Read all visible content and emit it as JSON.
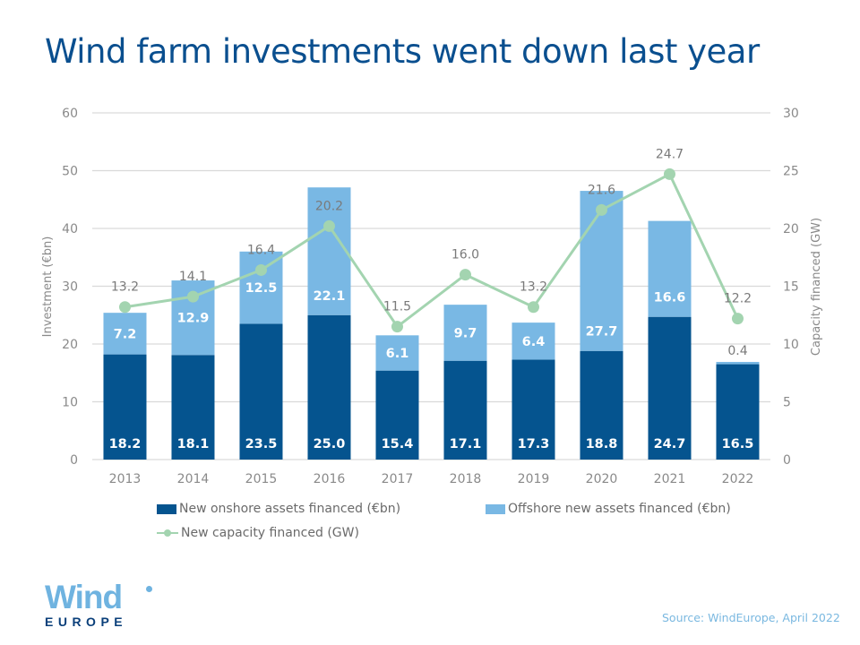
{
  "title": "Wind farm investments went down last year",
  "chart_data": {
    "type": "bar",
    "stacked": true,
    "title": "Wind farm investments went down last year",
    "categories": [
      "2013",
      "2014",
      "2015",
      "2016",
      "2017",
      "2018",
      "2019",
      "2020",
      "2021",
      "2022"
    ],
    "series": [
      {
        "name": "New onshore assets financed (€bn)",
        "type": "bar",
        "axis": "left",
        "color": "#05548f",
        "values": [
          18.2,
          18.1,
          23.5,
          25.0,
          15.4,
          17.1,
          17.3,
          18.8,
          24.7,
          16.5
        ],
        "labels": [
          "18.2",
          "18.1",
          "23.5",
          "25.0",
          "15.4",
          "17.1",
          "17.3",
          "18.8",
          "24.7",
          "16.5"
        ]
      },
      {
        "name": "Offshore new assets financed (€bn)",
        "type": "bar",
        "axis": "left",
        "color": "#79b8e4",
        "values": [
          7.2,
          12.9,
          12.5,
          22.1,
          6.1,
          9.7,
          6.4,
          27.7,
          16.6,
          0.4
        ],
        "labels": [
          "7.2",
          "12.9",
          "12.5",
          "22.1",
          "6.1",
          "9.7",
          "6.4",
          "27.7",
          "16.6",
          "0.4"
        ]
      },
      {
        "name": "New capacity financed (GW)",
        "type": "line",
        "axis": "right",
        "color": "#a3d4b0",
        "values": [
          13.2,
          14.1,
          16.4,
          20.2,
          11.5,
          16.0,
          13.2,
          21.6,
          24.7,
          12.2
        ],
        "labels": [
          "13.2",
          "14.1",
          "16.4",
          "20.2",
          "11.5",
          "16.0",
          "13.2",
          "21.6",
          "24.7",
          "12.2"
        ]
      }
    ],
    "ylabel": "Investment (€bn)",
    "ylim": [
      0,
      60
    ],
    "yticks": [
      "0",
      "10",
      "20",
      "30",
      "40",
      "50",
      "60"
    ],
    "y2label": "Capacity financed (GW)",
    "y2lim": [
      0,
      30
    ],
    "y2ticks": [
      "0",
      "5",
      "10",
      "15",
      "20",
      "25",
      "30"
    ],
    "grid": true,
    "legend_position": "bottom"
  },
  "legend": {
    "onshore": "New onshore assets financed (€bn)",
    "offshore": "Offshore new assets financed (€bn)",
    "capacity": "New capacity financed (GW)"
  },
  "logo": {
    "wind": "Wind",
    "europe": "EUROPE"
  },
  "source": "Source: WindEurope,  April 2022"
}
